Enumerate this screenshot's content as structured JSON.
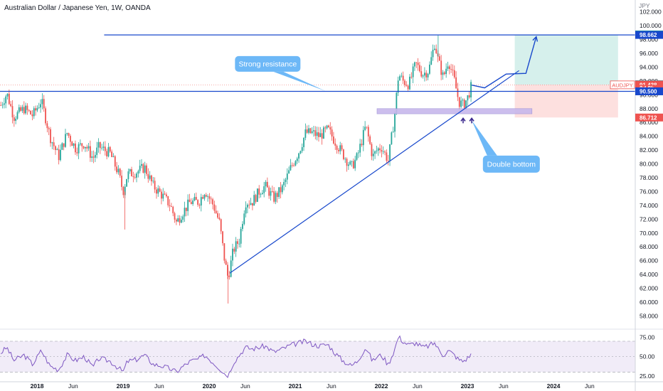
{
  "chart_data": {
    "type": "candlestick",
    "title": "Australian Dollar / Japanese Yen, 1W, OANDA",
    "symbol": "AUDJPY",
    "currency": "JPY",
    "y_ticks": [
      "58.000",
      "60.000",
      "62.000",
      "64.000",
      "66.000",
      "68.000",
      "70.000",
      "72.000",
      "74.000",
      "76.000",
      "78.000",
      "80.000",
      "82.000",
      "84.000",
      "86.000",
      "88.000",
      "90.000",
      "92.000",
      "94.000",
      "96.000",
      "98.000",
      "100.000",
      "102.000"
    ],
    "ylim": [
      56.4,
      103.2
    ],
    "x_ticks": [
      "2018",
      "Jun",
      "2019",
      "Jun",
      "2020",
      "Jun",
      "2021",
      "Jun",
      "2022",
      "Jun",
      "2023",
      "Jun",
      "2024",
      "Jun"
    ],
    "x_tick_dates": [
      2018.0,
      2018.42,
      2019.0,
      2019.42,
      2020.0,
      2020.42,
      2021.0,
      2021.42,
      2022.0,
      2022.42,
      2023.0,
      2023.42,
      2024.0,
      2024.42
    ],
    "price_anchors": [
      [
        2017.58,
        88.5
      ],
      [
        2017.65,
        90.2
      ],
      [
        2017.73,
        86.8
      ],
      [
        2017.85,
        88.0
      ],
      [
        2017.95,
        87.0
      ],
      [
        2018.05,
        89.2
      ],
      [
        2018.15,
        84.0
      ],
      [
        2018.25,
        81.0
      ],
      [
        2018.35,
        84.5
      ],
      [
        2018.45,
        82.2
      ],
      [
        2018.55,
        83.0
      ],
      [
        2018.65,
        80.8
      ],
      [
        2018.72,
        82.5
      ],
      [
        2018.85,
        81.5
      ],
      [
        2018.95,
        78.5
      ],
      [
        2019.0,
        76.0
      ],
      [
        2019.05,
        78.5
      ],
      [
        2019.15,
        78.8
      ],
      [
        2019.25,
        79.5
      ],
      [
        2019.35,
        76.8
      ],
      [
        2019.45,
        75.5
      ],
      [
        2019.55,
        74.0
      ],
      [
        2019.62,
        71.5
      ],
      [
        2019.68,
        72.8
      ],
      [
        2019.78,
        74.5
      ],
      [
        2019.88,
        74.5
      ],
      [
        2019.95,
        76.2
      ],
      [
        2020.05,
        74.0
      ],
      [
        2020.12,
        71.5
      ],
      [
        2020.18,
        66.0
      ],
      [
        2020.22,
        63.5
      ],
      [
        2020.28,
        67.5
      ],
      [
        2020.35,
        69.0
      ],
      [
        2020.42,
        74.5
      ],
      [
        2020.5,
        74.5
      ],
      [
        2020.58,
        76.0
      ],
      [
        2020.65,
        76.8
      ],
      [
        2020.75,
        75.0
      ],
      [
        2020.85,
        76.5
      ],
      [
        2020.95,
        79.5
      ],
      [
        2021.05,
        82.0
      ],
      [
        2021.12,
        84.5
      ],
      [
        2021.2,
        84.5
      ],
      [
        2021.28,
        84.0
      ],
      [
        2021.38,
        85.0
      ],
      [
        2021.45,
        83.5
      ],
      [
        2021.55,
        81.5
      ],
      [
        2021.65,
        79.5
      ],
      [
        2021.72,
        81.0
      ],
      [
        2021.82,
        85.5
      ],
      [
        2021.9,
        81.0
      ],
      [
        2021.95,
        82.0
      ],
      [
        2022.0,
        82.5
      ],
      [
        2022.08,
        80.5
      ],
      [
        2022.15,
        86.5
      ],
      [
        2022.2,
        93.0
      ],
      [
        2022.25,
        92.0
      ],
      [
        2022.32,
        91.5
      ],
      [
        2022.4,
        94.5
      ],
      [
        2022.48,
        93.0
      ],
      [
        2022.55,
        93.5
      ],
      [
        2022.62,
        97.5
      ],
      [
        2022.66,
        95.0
      ],
      [
        2022.72,
        92.5
      ],
      [
        2022.78,
        95.0
      ],
      [
        2022.85,
        92.0
      ],
      [
        2022.9,
        89.0
      ],
      [
        2022.95,
        88.5
      ],
      [
        2023.0,
        89.5
      ],
      [
        2023.05,
        91.4
      ]
    ],
    "rsi": {
      "ticks": [
        "25.00",
        "50.00",
        "75.00"
      ],
      "upper_band": 70,
      "lower_band": 30,
      "ylim": [
        22,
        82
      ],
      "values": [
        [
          2017.58,
          55
        ],
        [
          2017.65,
          62
        ],
        [
          2017.73,
          45
        ],
        [
          2017.85,
          52
        ],
        [
          2017.95,
          40
        ],
        [
          2018.05,
          58
        ],
        [
          2018.15,
          38
        ],
        [
          2018.25,
          33
        ],
        [
          2018.35,
          52
        ],
        [
          2018.45,
          45
        ],
        [
          2018.55,
          50
        ],
        [
          2018.65,
          36
        ],
        [
          2018.72,
          48
        ],
        [
          2018.85,
          44
        ],
        [
          2018.95,
          35
        ],
        [
          2019.0,
          30
        ],
        [
          2019.05,
          44
        ],
        [
          2019.15,
          46
        ],
        [
          2019.25,
          52
        ],
        [
          2019.35,
          40
        ],
        [
          2019.45,
          38
        ],
        [
          2019.55,
          34
        ],
        [
          2019.62,
          30
        ],
        [
          2019.68,
          36
        ],
        [
          2019.78,
          44
        ],
        [
          2019.88,
          47
        ],
        [
          2019.95,
          52
        ],
        [
          2020.05,
          42
        ],
        [
          2020.12,
          35
        ],
        [
          2020.18,
          28
        ],
        [
          2020.22,
          25
        ],
        [
          2020.28,
          42
        ],
        [
          2020.35,
          52
        ],
        [
          2020.42,
          62
        ],
        [
          2020.5,
          60
        ],
        [
          2020.58,
          62
        ],
        [
          2020.65,
          64
        ],
        [
          2020.75,
          56
        ],
        [
          2020.85,
          60
        ],
        [
          2020.95,
          65
        ],
        [
          2021.05,
          68
        ],
        [
          2021.12,
          70
        ],
        [
          2021.2,
          66
        ],
        [
          2021.28,
          64
        ],
        [
          2021.38,
          66
        ],
        [
          2021.45,
          56
        ],
        [
          2021.55,
          45
        ],
        [
          2021.65,
          38
        ],
        [
          2021.72,
          44
        ],
        [
          2021.82,
          62
        ],
        [
          2021.9,
          44
        ],
        [
          2021.95,
          50
        ],
        [
          2022.0,
          52
        ],
        [
          2022.08,
          40
        ],
        [
          2022.15,
          58
        ],
        [
          2022.2,
          76
        ],
        [
          2022.25,
          70
        ],
        [
          2022.32,
          65
        ],
        [
          2022.4,
          68
        ],
        [
          2022.48,
          62
        ],
        [
          2022.55,
          64
        ],
        [
          2022.62,
          68
        ],
        [
          2022.66,
          60
        ],
        [
          2022.72,
          52
        ],
        [
          2022.78,
          58
        ],
        [
          2022.85,
          52
        ],
        [
          2022.9,
          46
        ],
        [
          2022.95,
          44
        ],
        [
          2023.0,
          48
        ],
        [
          2023.05,
          54
        ]
      ]
    },
    "price_tags": [
      {
        "text": "98.727",
        "value": 98.727,
        "color": "#26a69a"
      },
      {
        "text": "98.662",
        "value": 98.662,
        "color": "#1848cc"
      },
      {
        "text": "91.518",
        "value": 91.518,
        "color": "#787b86"
      },
      {
        "text": "91.438",
        "value": 91.438,
        "color": "#ef5350"
      },
      {
        "text": "2d 8h",
        "value": 90.95,
        "color": "#ef5350"
      },
      {
        "text": "90.500",
        "value": 90.5,
        "color": "#1848cc"
      },
      {
        "text": "86.712",
        "value": 86.712,
        "color": "#ef5350"
      }
    ],
    "symbol_tag_color": "#ef5350",
    "resistance_lines": [
      {
        "value": 98.662,
        "from": 2018.78
      },
      {
        "value": 90.5,
        "from": 2017.55
      }
    ],
    "support_zone": {
      "from": 2021.95,
      "to": 2023.75,
      "top": 88.0,
      "bottom": 87.25
    },
    "trendline": {
      "x1": 2020.24,
      "y1": 64.2,
      "x2": 2023.6,
      "y2": 93.5
    },
    "projection": [
      [
        2023.05,
        91.4
      ],
      [
        2023.2,
        91.0
      ],
      [
        2023.45,
        93.0
      ],
      [
        2023.68,
        93.1
      ],
      [
        2023.8,
        98.4
      ]
    ],
    "long_position": {
      "from": 2023.55,
      "to": 2024.75,
      "entry": 91.438,
      "target": 98.727,
      "stop": 86.712
    },
    "annotations": [
      {
        "text": "Strong resistance"
      },
      {
        "text": "Double bottom"
      }
    ],
    "colors": {
      "up": "#26a69a",
      "down": "#ef5350",
      "line": "#1848cc",
      "rsi": "#7e57c2",
      "callout": "#6db8f7",
      "target_zone": "#d6f0ec",
      "stop_zone": "#fde0df",
      "support_zone": "#c7b8ec",
      "accent": "#2962ff"
    }
  }
}
